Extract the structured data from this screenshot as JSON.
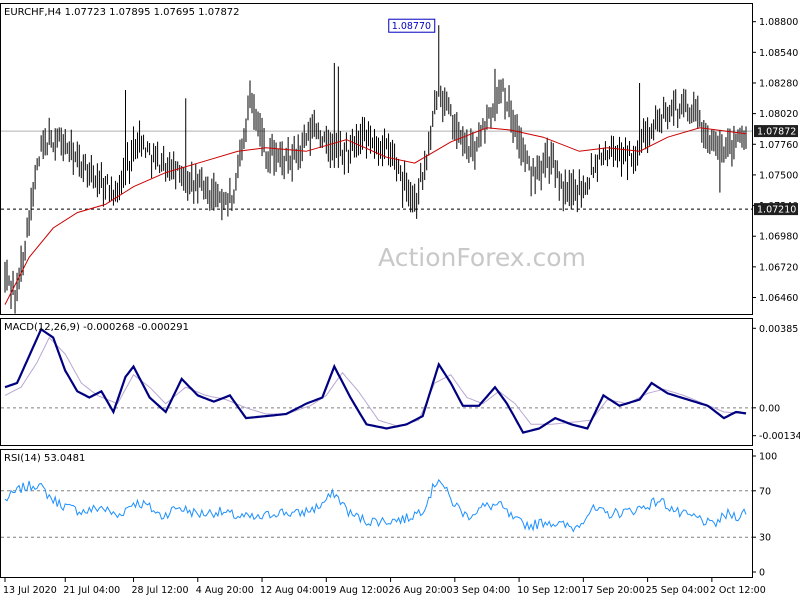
{
  "watermark": "ActionForex.com",
  "chart_data": [
    {
      "type": "ohlc",
      "title": "EURCHF,H4  1.07723 1.07895 1.07695 1.07872",
      "symbol": "EURCHF",
      "timeframe": "H4",
      "last_ohlc": {
        "open": 1.07723,
        "high": 1.07895,
        "low": 1.07695,
        "close": 1.07872
      },
      "ylim": [
        1.0632,
        1.0895
      ],
      "y_ticks": [
        "1.08800",
        "1.08540",
        "1.08280",
        "1.08020",
        "1.07760",
        "1.07500",
        "1.07240",
        "1.06980",
        "1.06720",
        "1.06460"
      ],
      "y_tick_values": [
        1.088,
        1.0854,
        1.0828,
        1.0802,
        1.0776,
        1.075,
        1.0724,
        1.0698,
        1.0672,
        1.0646
      ],
      "current_price": {
        "value": 1.07872,
        "label": "1.07872"
      },
      "support_line": {
        "value": 1.0721,
        "label": "1.07210"
      },
      "annotation": {
        "value": 1.0877,
        "label": "1.08770",
        "bar_index": 216
      },
      "bar_count": 370,
      "price_path": [
        [
          0,
          1.0665
        ],
        [
          6,
          1.0648
        ],
        [
          12,
          1.0715
        ],
        [
          18,
          1.0772
        ],
        [
          26,
          1.0782
        ],
        [
          36,
          1.0762
        ],
        [
          46,
          1.0745
        ],
        [
          56,
          1.0735
        ],
        [
          66,
          1.0782
        ],
        [
          76,
          1.0762
        ],
        [
          86,
          1.0752
        ],
        [
          96,
          1.074
        ],
        [
          108,
          1.073
        ],
        [
          114,
          1.0728
        ],
        [
          122,
          1.082
        ],
        [
          130,
          1.0768
        ],
        [
          142,
          1.076
        ],
        [
          154,
          1.079
        ],
        [
          166,
          1.0765
        ],
        [
          178,
          1.078
        ],
        [
          190,
          1.0772
        ],
        [
          198,
          1.0752
        ],
        [
          204,
          1.0728
        ],
        [
          210,
          1.076
        ],
        [
          216,
          1.0825
        ],
        [
          224,
          1.079
        ],
        [
          232,
          1.0768
        ],
        [
          240,
          1.0795
        ],
        [
          248,
          1.0825
        ],
        [
          254,
          1.079
        ],
        [
          262,
          1.075
        ],
        [
          270,
          1.0765
        ],
        [
          280,
          1.0732
        ],
        [
          290,
          1.0745
        ],
        [
          296,
          1.0768
        ],
        [
          304,
          1.077
        ],
        [
          314,
          1.0765
        ],
        [
          322,
          1.0795
        ],
        [
          330,
          1.08
        ],
        [
          338,
          1.081
        ],
        [
          346,
          1.0795
        ],
        [
          354,
          1.077
        ],
        [
          362,
          1.0778
        ],
        [
          369,
          1.07872
        ]
      ],
      "spikes": [
        [
          216,
          1.0877
        ],
        [
          216,
          1.0868
        ],
        [
          164,
          1.0845
        ],
        [
          166,
          1.0842
        ],
        [
          60,
          1.0822
        ],
        [
          90,
          1.0815
        ],
        [
          244,
          1.084
        ],
        [
          316,
          1.0828
        ],
        [
          356,
          1.0735
        ],
        [
          284,
          1.0728
        ],
        [
          198,
          1.0722
        ]
      ],
      "ma_path": [
        [
          0,
          1.064
        ],
        [
          12,
          1.068
        ],
        [
          24,
          1.0705
        ],
        [
          36,
          1.0718
        ],
        [
          50,
          1.0725
        ],
        [
          64,
          1.074
        ],
        [
          80,
          1.0752
        ],
        [
          100,
          1.0762
        ],
        [
          116,
          1.077
        ],
        [
          130,
          1.0773
        ],
        [
          150,
          1.077
        ],
        [
          170,
          1.078
        ],
        [
          190,
          1.0765
        ],
        [
          204,
          1.076
        ],
        [
          222,
          1.0778
        ],
        [
          240,
          1.079
        ],
        [
          252,
          1.0788
        ],
        [
          268,
          1.0782
        ],
        [
          286,
          1.077
        ],
        [
          300,
          1.0773
        ],
        [
          316,
          1.077
        ],
        [
          330,
          1.0782
        ],
        [
          346,
          1.079
        ],
        [
          369,
          1.0785
        ]
      ],
      "x_labels": [
        "13 Jul 2020",
        "21 Jul 04:00",
        "28 Jul 12:00",
        "4 Aug 20:00",
        "12 Aug 04:00",
        "19 Aug 12:00",
        "26 Aug 20:00",
        "3 Sep 04:00",
        "10 Sep 12:00",
        "17 Sep 20:00",
        "25 Sep 04:00",
        "2 Oct 12:00"
      ],
      "x_label_bars": [
        0,
        30,
        64,
        96,
        128,
        160,
        192,
        224,
        256,
        288,
        320,
        352
      ]
    },
    {
      "type": "line",
      "title": "MACD(12,26,9) -0.000268 -0.000291",
      "ylim": [
        -0.0018,
        0.0043
      ],
      "y_ticks": [
        "0.00385",
        "0.00",
        "-0.001348"
      ],
      "y_tick_values": [
        0.00385,
        0.0,
        -0.001348
      ],
      "zero_line": 0.0,
      "series": [
        {
          "color": "#000080",
          "points": [
            [
              0,
              0.001
            ],
            [
              6,
              0.0012
            ],
            [
              12,
              0.0025
            ],
            [
              18,
              0.0038
            ],
            [
              24,
              0.0034
            ],
            [
              30,
              0.0018
            ],
            [
              36,
              0.0008
            ],
            [
              42,
              0.0005
            ],
            [
              48,
              0.0008
            ],
            [
              54,
              -0.0002
            ],
            [
              60,
              0.0015
            ],
            [
              64,
              0.002
            ],
            [
              72,
              0.0005
            ],
            [
              80,
              -0.0002
            ],
            [
              88,
              0.0014
            ],
            [
              96,
              0.0006
            ],
            [
              104,
              0.0003
            ],
            [
              112,
              0.0006
            ],
            [
              120,
              -0.0005
            ],
            [
              130,
              -0.0004
            ],
            [
              140,
              -0.0003
            ],
            [
              150,
              0.0002
            ],
            [
              158,
              0.0005
            ],
            [
              164,
              0.002
            ],
            [
              172,
              0.0005
            ],
            [
              180,
              -0.0008
            ],
            [
              190,
              -0.001
            ],
            [
              200,
              -0.0008
            ],
            [
              208,
              -0.0004
            ],
            [
              216,
              0.0021
            ],
            [
              222,
              0.0012
            ],
            [
              228,
              0.0001
            ],
            [
              236,
              0.0001
            ],
            [
              244,
              0.001
            ],
            [
              250,
              0.0002
            ],
            [
              258,
              -0.0012
            ],
            [
              266,
              -0.001
            ],
            [
              274,
              -0.0005
            ],
            [
              282,
              -0.0008
            ],
            [
              290,
              -0.001
            ],
            [
              298,
              0.0006
            ],
            [
              306,
              0.0001
            ],
            [
              316,
              0.0004
            ],
            [
              322,
              0.0012
            ],
            [
              330,
              0.0007
            ],
            [
              340,
              0.0004
            ],
            [
              350,
              0.0001
            ],
            [
              358,
              -0.0005
            ],
            [
              364,
              -0.0002
            ],
            [
              369,
              -0.000268
            ]
          ]
        },
        {
          "color": "#b8a8d0",
          "points": [
            [
              0,
              0.0006
            ],
            [
              8,
              0.001
            ],
            [
              16,
              0.0022
            ],
            [
              22,
              0.0034
            ],
            [
              30,
              0.0026
            ],
            [
              38,
              0.0012
            ],
            [
              46,
              0.0006
            ],
            [
              56,
              0.0002
            ],
            [
              64,
              0.0016
            ],
            [
              72,
              0.001
            ],
            [
              80,
              0.0002
            ],
            [
              90,
              0.001
            ],
            [
              100,
              0.0006
            ],
            [
              110,
              0.0004
            ],
            [
              120,
              0.0
            ],
            [
              130,
              -0.0003
            ],
            [
              140,
              -0.0003
            ],
            [
              152,
              0.0001
            ],
            [
              160,
              0.0006
            ],
            [
              168,
              0.0017
            ],
            [
              176,
              0.0008
            ],
            [
              186,
              -0.0006
            ],
            [
              196,
              -0.0009
            ],
            [
              206,
              -0.0006
            ],
            [
              214,
              0.0012
            ],
            [
              222,
              0.0016
            ],
            [
              230,
              0.0005
            ],
            [
              238,
              0.0002
            ],
            [
              246,
              0.0008
            ],
            [
              254,
              0.0002
            ],
            [
              262,
              -0.0008
            ],
            [
              272,
              -0.0008
            ],
            [
              282,
              -0.0007
            ],
            [
              292,
              -0.0006
            ],
            [
              300,
              0.0004
            ],
            [
              310,
              0.0002
            ],
            [
              320,
              0.0007
            ],
            [
              328,
              0.0009
            ],
            [
              338,
              0.0006
            ],
            [
              348,
              0.0002
            ],
            [
              358,
              -0.0002
            ],
            [
              369,
              -0.000291
            ]
          ]
        }
      ]
    },
    {
      "type": "line",
      "title": "RSI(14) 53.0481",
      "ylim": [
        0,
        100
      ],
      "y_ticks": [
        "100",
        "70",
        "30",
        "0"
      ],
      "y_tick_values": [
        100,
        70,
        30,
        0
      ],
      "levels": [
        70,
        30
      ],
      "series": [
        {
          "color": "#1e90ff",
          "points": [
            [
              0,
              62
            ],
            [
              8,
              72
            ],
            [
              16,
              76
            ],
            [
              24,
              62
            ],
            [
              32,
              55
            ],
            [
              40,
              52
            ],
            [
              48,
              56
            ],
            [
              56,
              48
            ],
            [
              64,
              60
            ],
            [
              70,
              58
            ],
            [
              78,
              48
            ],
            [
              86,
              56
            ],
            [
              96,
              50
            ],
            [
              106,
              52
            ],
            [
              116,
              48
            ],
            [
              126,
              46
            ],
            [
              136,
              52
            ],
            [
              146,
              50
            ],
            [
              156,
              56
            ],
            [
              164,
              68
            ],
            [
              172,
              50
            ],
            [
              180,
              44
            ],
            [
              190,
              44
            ],
            [
              200,
              46
            ],
            [
              208,
              54
            ],
            [
              216,
              82
            ],
            [
              222,
              62
            ],
            [
              230,
              48
            ],
            [
              238,
              56
            ],
            [
              246,
              58
            ],
            [
              254,
              44
            ],
            [
              262,
              40
            ],
            [
              270,
              44
            ],
            [
              278,
              40
            ],
            [
              284,
              38
            ],
            [
              292,
              54
            ],
            [
              300,
              50
            ],
            [
              310,
              52
            ],
            [
              318,
              56
            ],
            [
              326,
              62
            ],
            [
              336,
              50
            ],
            [
              346,
              46
            ],
            [
              352,
              40
            ],
            [
              360,
              50
            ],
            [
              366,
              48
            ],
            [
              369,
              53
            ]
          ]
        }
      ]
    }
  ]
}
